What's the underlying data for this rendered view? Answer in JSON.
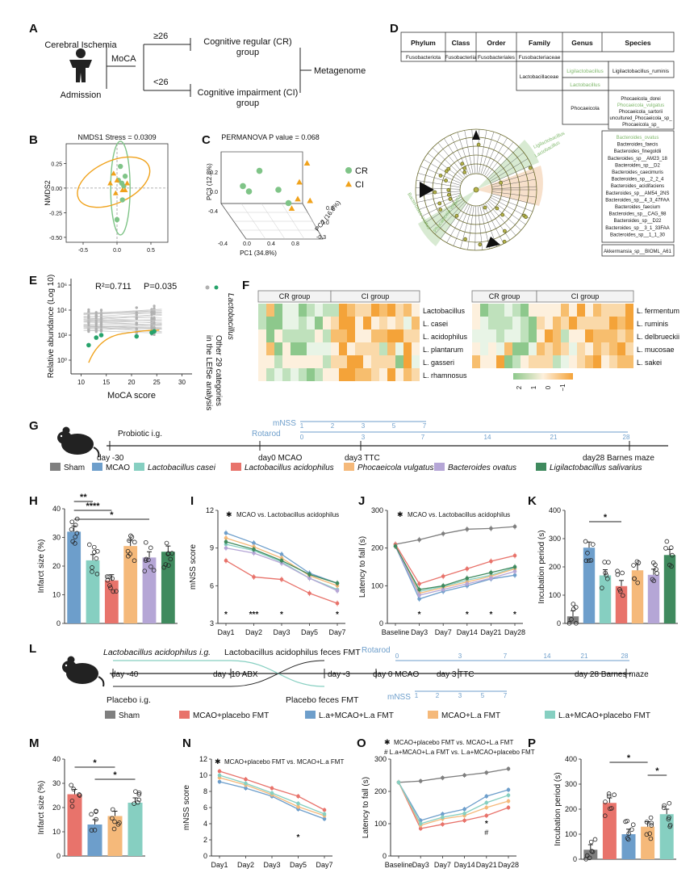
{
  "panel_labels": [
    "A",
    "B",
    "C",
    "D",
    "E",
    "F",
    "G",
    "H",
    "I",
    "J",
    "K",
    "L",
    "M",
    "N",
    "O",
    "P"
  ],
  "colors": {
    "sham": "#7f7f7f",
    "mcao": "#6d9ecb",
    "l_casei": "#86cfc1",
    "l_acidophilus": "#e8736b",
    "p_vulgatus": "#f5b97a",
    "b_ovatus": "#b5a6d6",
    "l_salivarius": "#3f8a5e",
    "cr": "#7fc487",
    "ci": "#f0a21b",
    "lefse_green": "#7fb86b",
    "lefse_orange": "#e8a76a"
  },
  "panelA": {
    "top_left": "Cerebral Ischemia",
    "bottom_left": "Admission",
    "test": "MoCA",
    "hi": "≥26",
    "lo": "<26",
    "cr_line1": "Cognitive regular (CR)",
    "cr_line2": "group",
    "ci_line1": "Cognitive impairment (CI)",
    "ci_line2": "group",
    "outcome": "Metagenome"
  },
  "panelD": {
    "headers": [
      "Phylum",
      "Class",
      "Order",
      "Family",
      "Genus",
      "Species"
    ],
    "row1": [
      "Fusobacteriota",
      "Fusobacteriia",
      "Fusobacteriales",
      "Fusobacteriaceae"
    ],
    "family2": "Lactobacillaceae",
    "genus_ligi": "Ligilactobacillus",
    "species_ligi": "Ligilactobacillus_ruminis",
    "genus_lacto": "Lactobacillus",
    "genus_phoc": "Phocaeicola",
    "phoc_species": [
      "Phocaeicola_dorei",
      "Phocaeicola_vulgatus",
      "Phocaeicola_sartorii",
      "uncultured_Phocaeicola_sp_",
      "Phocaeicola_sp_"
    ],
    "bact_species": [
      "Bacteroides_ovatus",
      "Bacteroides_faecis",
      "Bacteroides_finegoldii",
      "Bacteroides_sp__AM23_18",
      "Bacteroides_sp__D2",
      "Bacteroides_caecimuris",
      "Bacteroides_sp__2_2_4",
      "Bacteroides_acidifaciens",
      "Bacteroides_sp__AM54_2NS",
      "Bacteroides_sp__4_3_47FAA",
      "Bacteroides_faecium",
      "Bacteroides_sp__CAG_98",
      "Bacteroides_sp__D22",
      "Bacteroides_sp__3_1_33FAA",
      "Bacteroides_sp__1_1_30"
    ],
    "akk": "Akkermansia_sp__BIOML_A61",
    "clado_labels": [
      "Ligilactobacillus",
      "Lactobacillus",
      "Bacteroides ovatus",
      "Phocaeicola vulgatus"
    ]
  },
  "panelE_legend": {
    "l1": "Lactobacillus",
    "l2": "Other 29 categories",
    "l3": "in the LEfSe analysis"
  },
  "panelF_groups": [
    "CR group",
    "CI group"
  ],
  "panelF_left_rows": [
    "Lactobacillus",
    "L. casei",
    "L. acidophilus",
    "L. plantarum",
    "L. gasseri",
    "L. rhamnosus"
  ],
  "panelF_right_rows": [
    "L. fermentum",
    "L. ruminis",
    "L. delbrueckii",
    "L. mucosae",
    "L. sakei"
  ],
  "panelF_scale": [
    "2",
    "1",
    "0",
    "−1"
  ],
  "panelG": {
    "probiotic": "Probiotic i.g.",
    "day_m30": "day -30",
    "day0": "day0 MCAO",
    "day3": "day3 TTC",
    "day28": "day28 Barnes maze",
    "mnss": "mNSS",
    "rotarod": "Rotarod",
    "mnss_days": [
      "1",
      "2",
      "3",
      "5",
      "7"
    ],
    "rot_days": [
      "0",
      "3",
      "7",
      "14",
      "21",
      "28"
    ],
    "legend": [
      "Sham",
      "MCAO",
      "Lactobacillus casei",
      "Lactobacillus acidophilus",
      "Phocaeicola vulgatus",
      "Bacteroides ovatus",
      "Ligilactobacillus salivarius"
    ]
  },
  "panelL": {
    "acid_ig": "Lactobacillus acidophilus i.g.",
    "acid_fmt": "Lactobacillus acidophilus feces FMT",
    "rotarod": "Rotarod",
    "d40": "day -40",
    "d10": "day -10 ABX",
    "d3m": "day -3",
    "d0": "day 0 MCAO",
    "d3": "day 3 TTC",
    "d28": "day 28 Barnes maze",
    "placebo_ig": "Placebo i.g.",
    "placebo_fmt": "Placebo feces FMT",
    "mnss": "mNSS",
    "mnss_days": [
      "1",
      "2",
      "3",
      "5",
      "7"
    ],
    "rot_days": [
      "0",
      "3",
      "7",
      "14",
      "21",
      "28"
    ],
    "legend": [
      "Sham",
      "MCAO+placebo FMT",
      "L.a+MCAO+L.a FMT",
      "MCAO+L.a FMT",
      "L.a+MCAO+placebo FMT"
    ]
  },
  "chart_data": [
    {
      "id": "B",
      "type": "scatter",
      "title": "NMDS1  Stress = 0.0309",
      "ylabel": "NMDS2",
      "xlim": [
        -0.75,
        0.75
      ],
      "ylim": [
        -0.55,
        0.45
      ],
      "xticks": [
        "-0.5",
        "0.0",
        "0.5"
      ],
      "yticks": [
        "0.25",
        "0.00",
        "-0.25",
        "-0.50"
      ],
      "series": [
        {
          "name": "CR",
          "points": [
            [
              0.05,
              0.22
            ],
            [
              0.12,
              0.12
            ],
            [
              0.02,
              0.08
            ],
            [
              0.1,
              0.02
            ],
            [
              0.08,
              -0.12
            ],
            [
              0.0,
              -0.32
            ],
            [
              0.07,
              0.05
            ]
          ]
        },
        {
          "name": "CI",
          "points": [
            [
              -0.05,
              0.15
            ],
            [
              0.0,
              0.08
            ],
            [
              0.15,
              0.05
            ],
            [
              0.08,
              -0.02
            ],
            [
              -0.1,
              0.05
            ],
            [
              0.12,
              -0.02
            ],
            [
              -0.02,
              -0.05
            ]
          ]
        }
      ]
    },
    {
      "id": "C",
      "type": "scatter3d",
      "title": "PERMANOVA P value = 0.068",
      "xlabel": "PC1 (34.8%)",
      "ylabel": "PC2 (16.6%)",
      "zlabel": "PC3 (12.8%)",
      "xticks": [
        "-0.4",
        "0.0",
        "0.4",
        "0.8"
      ],
      "yticks": [
        "-0.3",
        "0.0",
        "0.3"
      ],
      "zticks": [
        "-0.4",
        "0.0",
        "0.2"
      ],
      "legend": [
        "CR",
        "CI"
      ],
      "series": [
        {
          "name": "CR",
          "points": [
            [
              0.05,
              0.1,
              0.18
            ],
            [
              -0.1,
              0.0,
              0.12
            ],
            [
              -0.05,
              0.05,
              0.08
            ],
            [
              0.3,
              0.0,
              0.1
            ],
            [
              0.45,
              -0.1,
              0.05
            ]
          ]
        },
        {
          "name": "CI",
          "points": [
            [
              0.55,
              0.2,
              0.2
            ],
            [
              0.5,
              0.1,
              0.12
            ],
            [
              0.5,
              0.05,
              0.04
            ],
            [
              0.45,
              0.0,
              0.0
            ],
            [
              0.62,
              0.1,
              0.02
            ]
          ]
        }
      ]
    },
    {
      "id": "E",
      "type": "scatter",
      "xlabel": "MoCA score",
      "ylabel": "Relative abundance (Log 10)",
      "annotation1": "R²=0.711",
      "annotation2": "P=0.035",
      "xticks": [
        "10",
        "15",
        "20",
        "25",
        "30"
      ],
      "yticks": [
        "10⁶",
        "10⁴",
        "10²",
        "10⁰"
      ],
      "x": [
        11.5,
        13,
        14,
        21,
        24,
        24.5
      ],
      "y_log10": [
        1.2,
        1.8,
        2.0,
        1.9,
        2.2,
        2.3
      ]
    },
    {
      "id": "H",
      "type": "bar",
      "ylabel": "Infarct size (%)",
      "ylim": [
        0,
        40
      ],
      "yticks": [
        "0",
        "10",
        "20",
        "30",
        "40"
      ],
      "categories": [
        "MCAO",
        "L. casei",
        "L. acidophilus",
        "P. vulgatus",
        "B. ovatus",
        "L. salivarius"
      ],
      "values": [
        32,
        22,
        15,
        27,
        23,
        25
      ],
      "sig": [
        [
          "**",
          "MCAO",
          "L. casei"
        ],
        [
          "****",
          "MCAO",
          "L. acidophilus"
        ],
        [
          "*",
          "MCAO",
          "B. ovatus"
        ]
      ]
    },
    {
      "id": "I",
      "type": "line",
      "ylabel": "mNSS score",
      "ylim": [
        3,
        12
      ],
      "title": "MCAO vs. Lactobacillus acidophilus",
      "yticks": [
        "3",
        "6",
        "9",
        "12"
      ],
      "categories": [
        "Day1",
        "Day2",
        "Day3",
        "Day5",
        "Day7"
      ],
      "stars": [
        "*",
        "***",
        "*",
        "",
        "*"
      ],
      "series": [
        {
          "name": "MCAO",
          "values": [
            10.2,
            9.4,
            8.5,
            7.0,
            6.2
          ]
        },
        {
          "name": "Lactobacillus casei",
          "values": [
            9.3,
            8.8,
            7.9,
            6.6,
            5.7
          ]
        },
        {
          "name": "Lactobacillus acidophilus",
          "values": [
            8.0,
            6.7,
            6.5,
            5.4,
            4.6
          ]
        },
        {
          "name": "Phocaeicola vulgatus",
          "values": [
            9.8,
            9.1,
            8.2,
            6.8,
            6.0
          ]
        },
        {
          "name": "Bacteroides ovatus",
          "values": [
            9.0,
            8.6,
            7.8,
            6.6,
            5.6
          ]
        },
        {
          "name": "Ligilactobacillus salivarius",
          "values": [
            9.5,
            8.9,
            8.0,
            6.9,
            6.2
          ]
        }
      ]
    },
    {
      "id": "J",
      "type": "line",
      "ylabel": "Latency to fall (s)",
      "ylim": [
        0,
        300
      ],
      "title": "MCAO vs. Lactobacillus acidophilus",
      "yticks": [
        "0",
        "100",
        "200",
        "300"
      ],
      "categories": [
        "Baseline",
        "Day3",
        "Day7",
        "Day14",
        "Day21",
        "Day28"
      ],
      "stars": [
        "",
        "*",
        "",
        "*",
        "*",
        "*"
      ],
      "series": [
        {
          "name": "Sham",
          "values": [
            210,
            222,
            238,
            250,
            252,
            257
          ]
        },
        {
          "name": "MCAO",
          "values": [
            205,
            65,
            85,
            100,
            118,
            128
          ]
        },
        {
          "name": "Lactobacillus casei",
          "values": [
            205,
            85,
            98,
            115,
            128,
            148
          ]
        },
        {
          "name": "Lactobacillus acidophilus",
          "values": [
            210,
            105,
            125,
            145,
            165,
            180
          ]
        },
        {
          "name": "Phocaeicola vulgatus",
          "values": [
            205,
            80,
            95,
            110,
            125,
            145
          ]
        },
        {
          "name": "Bacteroides ovatus",
          "values": [
            205,
            75,
            90,
            105,
            120,
            138
          ]
        },
        {
          "name": "Ligilactobacillus salivarius",
          "values": [
            205,
            90,
            100,
            120,
            135,
            150
          ]
        }
      ]
    },
    {
      "id": "K",
      "type": "bar",
      "ylabel": "Incubation period (s)",
      "ylim": [
        0,
        400
      ],
      "yticks": [
        "0",
        "100",
        "200",
        "300",
        "400"
      ],
      "categories": [
        "Sham",
        "MCAO",
        "L. casei",
        "L. acidophilus",
        "P. vulgatus",
        "B. ovatus",
        "L. salivarius"
      ],
      "values": [
        25,
        268,
        170,
        132,
        188,
        172,
        242
      ],
      "sig": [
        [
          "*",
          "MCAO",
          "L. acidophilus"
        ]
      ]
    },
    {
      "id": "M",
      "type": "bar",
      "ylabel": "Infarct size (%)",
      "ylim": [
        0,
        40
      ],
      "yticks": [
        "0",
        "10",
        "20",
        "30",
        "40"
      ],
      "categories": [
        "MCAO+placebo FMT",
        "L.a+MCAO+L.a FMT",
        "MCAO+L.a FMT",
        "L.a+MCAO+placebo FMT"
      ],
      "values": [
        25.5,
        13,
        16.5,
        22
      ],
      "sig": [
        [
          "*",
          "MCAO+placebo FMT",
          "MCAO+L.a FMT"
        ],
        [
          "*",
          "L.a+MCAO+L.a FMT",
          "L.a+MCAO+placebo FMT"
        ]
      ]
    },
    {
      "id": "N",
      "type": "line",
      "ylabel": "mNSS score",
      "ylim": [
        0,
        12
      ],
      "title": "MCAO+placebo FMT vs. MCAO+L.a FMT",
      "yticks": [
        "0",
        "2",
        "4",
        "6",
        "8",
        "10",
        "12"
      ],
      "categories": [
        "Day1",
        "Day2",
        "Day3",
        "Day5",
        "Day7"
      ],
      "stars": [
        "",
        "",
        "",
        "*",
        ""
      ],
      "series": [
        {
          "name": "MCAO+placebo FMT",
          "values": [
            10.5,
            9.5,
            8.4,
            7.4,
            5.7
          ]
        },
        {
          "name": "L.a+MCAO+L.a FMT",
          "values": [
            9.2,
            8.4,
            7.4,
            5.8,
            4.6
          ]
        },
        {
          "name": "MCAO+L.a FMT",
          "values": [
            9.7,
            8.8,
            7.6,
            6.1,
            5.0
          ]
        },
        {
          "name": "L.a+MCAO+placebo FMT",
          "values": [
            10.0,
            9.0,
            7.8,
            6.5,
            5.2
          ]
        }
      ]
    },
    {
      "id": "O",
      "type": "line",
      "ylabel": "Latency to fall (s)",
      "ylim": [
        0,
        300
      ],
      "title1": "MCAO+placebo FMT vs. MCAO+L.a FMT",
      "title2": "# L.a+MCAO+L.a FMT vs. L.a+MCAO+placebo FMT",
      "yticks": [
        "0",
        "100",
        "200",
        "300"
      ],
      "categories": [
        "Baseline",
        "Day3",
        "Day7",
        "Day14",
        "Day21",
        "Day28"
      ],
      "stars": [
        "",
        "",
        "",
        "",
        "*",
        ""
      ],
      "hashes": [
        "",
        "",
        "",
        "",
        "#",
        ""
      ],
      "series": [
        {
          "name": "Sham",
          "values": [
            228,
            232,
            242,
            250,
            258,
            270
          ]
        },
        {
          "name": "MCAO+placebo FMT",
          "values": [
            228,
            85,
            98,
            110,
            125,
            150
          ]
        },
        {
          "name": "L.a+MCAO+L.a FMT",
          "values": [
            228,
            110,
            130,
            145,
            185,
            205
          ]
        },
        {
          "name": "MCAO+L.a FMT",
          "values": [
            228,
            95,
            115,
            125,
            150,
            170
          ]
        },
        {
          "name": "L.a+MCAO+placebo FMT",
          "values": [
            228,
            100,
            120,
            132,
            165,
            188
          ]
        }
      ]
    },
    {
      "id": "P",
      "type": "bar",
      "ylabel": "Incubation period (s)",
      "ylim": [
        0,
        400
      ],
      "yticks": [
        "0",
        "100",
        "200",
        "300",
        "400"
      ],
      "categories": [
        "Sham",
        "MCAO+placebo FMT",
        "L.a+MCAO+L.a FMT",
        "MCAO+L.a FMT",
        "L.a+MCAO+placebo FMT"
      ],
      "values": [
        38,
        225,
        100,
        130,
        180
      ],
      "sig": [
        [
          "*",
          "MCAO+placebo FMT",
          "MCAO+L.a FMT"
        ],
        [
          "*",
          "MCAO+L.a FMT",
          "L.a+MCAO+placebo FMT"
        ]
      ]
    }
  ]
}
